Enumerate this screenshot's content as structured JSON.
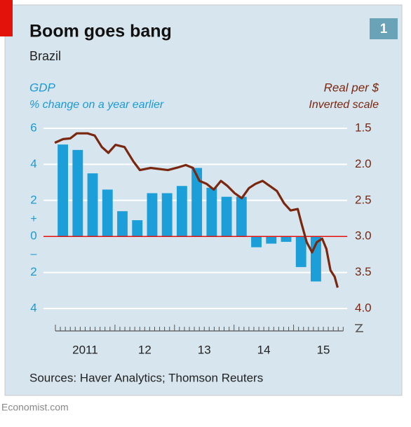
{
  "chart_data": {
    "type": "bar",
    "title": "Boom goes bang",
    "subtitle": "Brazil",
    "chart_number": "1",
    "ylabel": "% change on a year earlier",
    "y2label": "Inverted scale",
    "y_sign_labels": [
      "+",
      "–"
    ],
    "source": "Sources: Haver Analytics; Thomson Reuters",
    "footer": "Economist.com",
    "xlim": [
      2010.8,
      2015.9
    ],
    "xticks": [
      {
        "value": 2011.5,
        "label": "2011"
      },
      {
        "value": 2012.5,
        "label": "12"
      },
      {
        "value": 2013.5,
        "label": "13"
      },
      {
        "value": 2014.5,
        "label": "14"
      },
      {
        "value": 2015.5,
        "label": "15"
      }
    ],
    "xminor_ticks": [
      2011,
      2011.083,
      2011.167,
      2011.25,
      2011.333,
      2011.417,
      2011.5,
      2011.583,
      2011.667,
      2011.75,
      2011.833,
      2011.917,
      2012,
      2012.083,
      2012.167,
      2012.25,
      2012.333,
      2012.417,
      2012.5,
      2012.583,
      2012.667,
      2012.75,
      2012.833,
      2012.917,
      2013,
      2013.083,
      2013.167,
      2013.25,
      2013.333,
      2013.417,
      2013.5,
      2013.583,
      2013.667,
      2013.75,
      2013.833,
      2013.917,
      2014,
      2014.083,
      2014.167,
      2014.25,
      2014.333,
      2014.417,
      2014.5,
      2014.583,
      2014.667,
      2014.75,
      2014.833,
      2014.917,
      2015,
      2015.083,
      2015.167,
      2015.25,
      2015.333,
      2015.417,
      2015.5,
      2015.583,
      2015.667,
      2015.75,
      2015.833
    ],
    "ylim": [
      -4,
      6
    ],
    "yticks": [
      6,
      4,
      2,
      0,
      {
        "value": -2,
        "label": "2"
      },
      {
        "value": -4,
        "label": "4"
      }
    ],
    "y2lim": [
      1.5,
      4.0
    ],
    "y2_inverted": true,
    "y2ticks": [
      1.5,
      {
        "value": 2,
        "label": "2.0"
      },
      2.5,
      {
        "value": 3,
        "label": "3.0"
      },
      3.5,
      {
        "value": 4,
        "label": "4.0"
      }
    ],
    "grid": true,
    "zero_line_color": "#e3120b",
    "series": [
      {
        "name": "GDP",
        "type": "bar",
        "color": "#1c9fd9",
        "axis": "y",
        "x": [
          2011.125,
          2011.375,
          2011.625,
          2011.875,
          2012.125,
          2012.375,
          2012.625,
          2012.875,
          2013.125,
          2013.375,
          2013.625,
          2013.875,
          2014.125,
          2014.375,
          2014.625,
          2014.875,
          2015.125,
          2015.375
        ],
        "values": [
          5.1,
          4.8,
          3.5,
          2.6,
          1.4,
          0.9,
          2.4,
          2.4,
          2.8,
          3.8,
          2.7,
          2.2,
          2.2,
          -0.6,
          -0.4,
          -0.3,
          -1.7,
          -2.5
        ]
      },
      {
        "name": "Real per $",
        "type": "line",
        "color": "#7a2710",
        "axis": "y2",
        "x": [
          2010.99,
          2011.13,
          2011.25,
          2011.36,
          2011.54,
          2011.66,
          2011.78,
          2011.89,
          2012.01,
          2012.16,
          2012.31,
          2012.42,
          2012.6,
          2012.89,
          2013.07,
          2013.19,
          2013.31,
          2013.42,
          2013.54,
          2013.66,
          2013.78,
          2013.89,
          2014.01,
          2014.13,
          2014.25,
          2014.36,
          2014.48,
          2014.6,
          2014.72,
          2014.84,
          2014.95,
          2015.07,
          2015.13,
          2015.22,
          2015.31,
          2015.39,
          2015.48,
          2015.55,
          2015.62,
          2015.69,
          2015.74
        ],
        "values": [
          1.7,
          1.65,
          1.64,
          1.57,
          1.57,
          1.6,
          1.76,
          1.84,
          1.73,
          1.76,
          1.96,
          2.08,
          2.05,
          2.08,
          2.04,
          2.01,
          2.05,
          2.23,
          2.27,
          2.35,
          2.23,
          2.3,
          2.4,
          2.47,
          2.33,
          2.27,
          2.23,
          2.3,
          2.37,
          2.54,
          2.64,
          2.62,
          2.81,
          3.08,
          3.22,
          3.08,
          3.03,
          3.17,
          3.47,
          3.56,
          3.71
        ]
      }
    ]
  }
}
